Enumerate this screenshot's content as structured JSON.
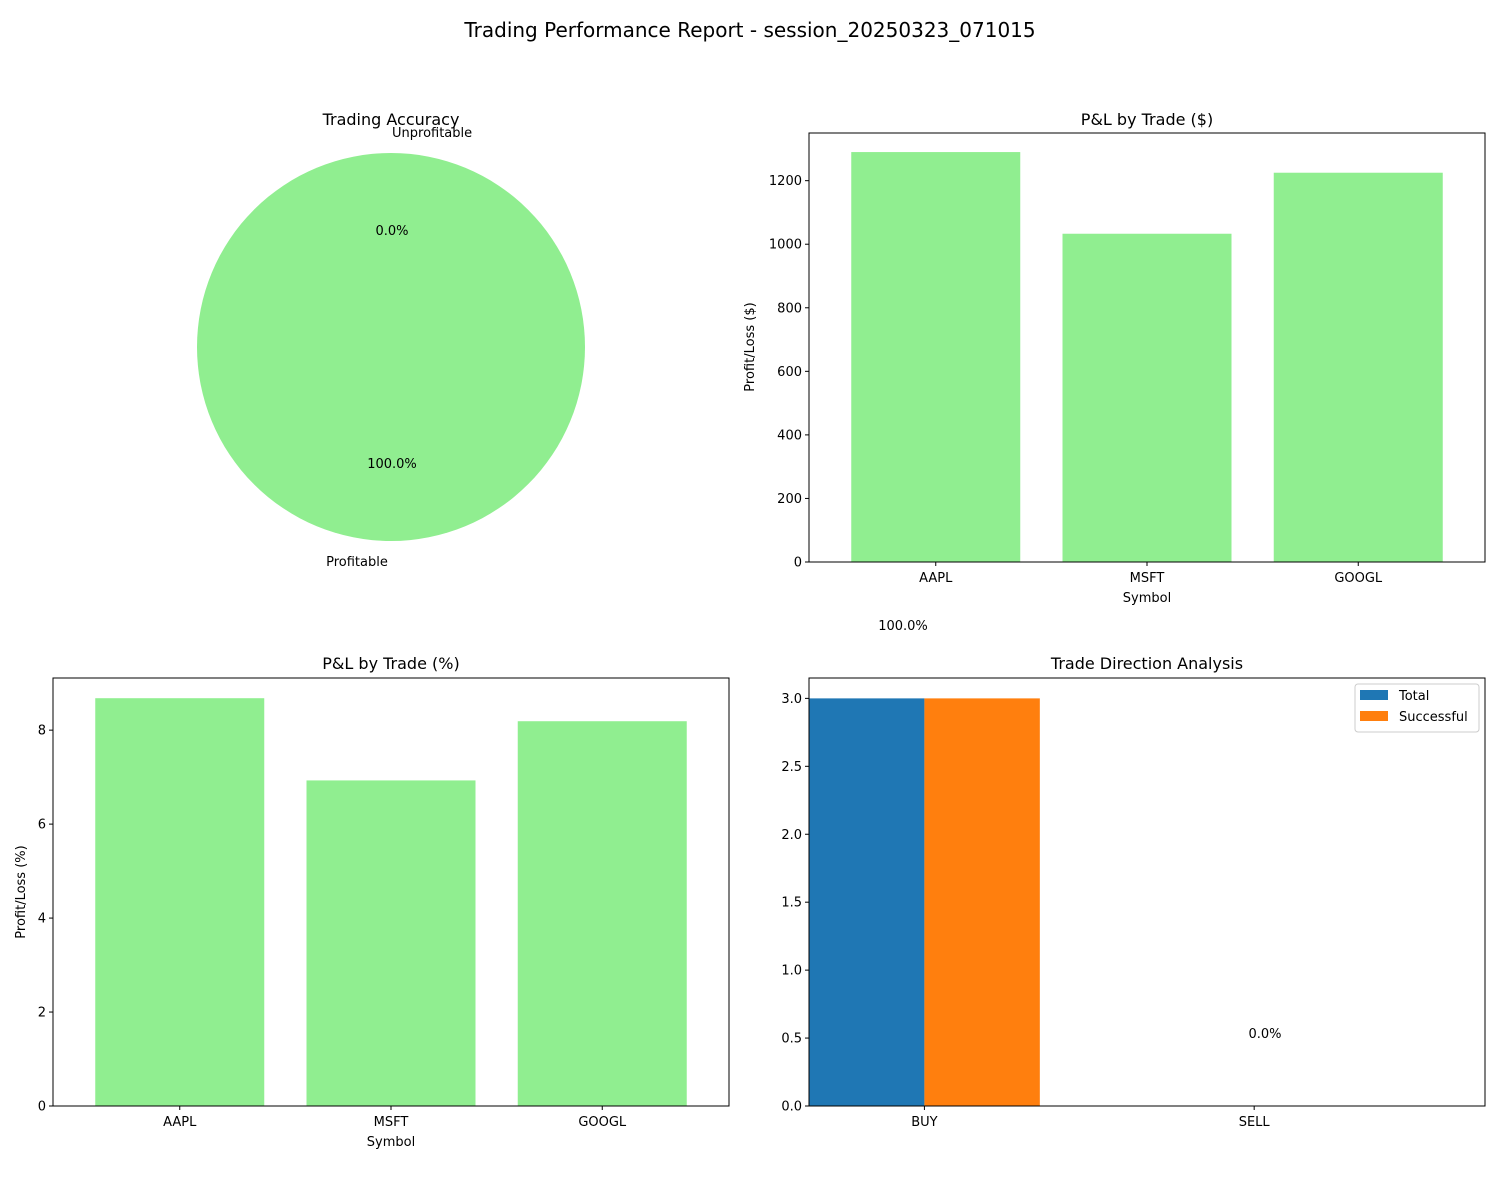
{
  "figure_title": "Trading Performance Report - session_20250323_071015",
  "colors": {
    "profit_bar": "#90EE90",
    "total_bar": "#1f77b4",
    "successful_bar": "#ff7f0e",
    "axis": "#000000"
  },
  "chart_data": [
    {
      "id": "accuracy",
      "type": "pie",
      "title": "Trading Accuracy",
      "labels": [
        "Profitable",
        "Unprofitable"
      ],
      "values": [
        100.0,
        0.0
      ],
      "pct_labels": [
        "100.0%",
        "0.0%"
      ],
      "colors": [
        "#90EE90",
        "#FF9999"
      ]
    },
    {
      "id": "pnl_dollar",
      "type": "bar",
      "title": "P&L by Trade ($)",
      "xlabel": "Symbol",
      "ylabel": "Profit/Loss ($)",
      "categories": [
        "AAPL",
        "MSFT",
        "GOOGL"
      ],
      "values": [
        1290,
        1033,
        1225
      ],
      "ylim": [
        0,
        1350
      ],
      "yticks": [
        0,
        200,
        400,
        600,
        800,
        1000,
        1200
      ],
      "annotation": "100.0%"
    },
    {
      "id": "pnl_pct",
      "type": "bar",
      "title": "P&L by Trade (%)",
      "xlabel": "Symbol",
      "ylabel": "Profit/Loss (%)",
      "categories": [
        "AAPL",
        "MSFT",
        "GOOGL"
      ],
      "values": [
        8.68,
        6.93,
        8.19
      ],
      "ylim": [
        0,
        9.11
      ],
      "yticks": [
        0,
        2,
        4,
        6,
        8
      ]
    },
    {
      "id": "direction",
      "type": "bar",
      "title": "Trade Direction Analysis",
      "categories": [
        "BUY",
        "SELL"
      ],
      "series": [
        {
          "name": "Total",
          "values": [
            3,
            0
          ]
        },
        {
          "name": "Successful",
          "values": [
            3,
            0
          ]
        }
      ],
      "ylim": [
        0,
        3.15
      ],
      "yticks": [
        "0.0",
        "0.5",
        "1.0",
        "1.5",
        "2.0",
        "2.5",
        "3.0"
      ],
      "legend": "top-right",
      "annotation": "0.0%"
    }
  ]
}
